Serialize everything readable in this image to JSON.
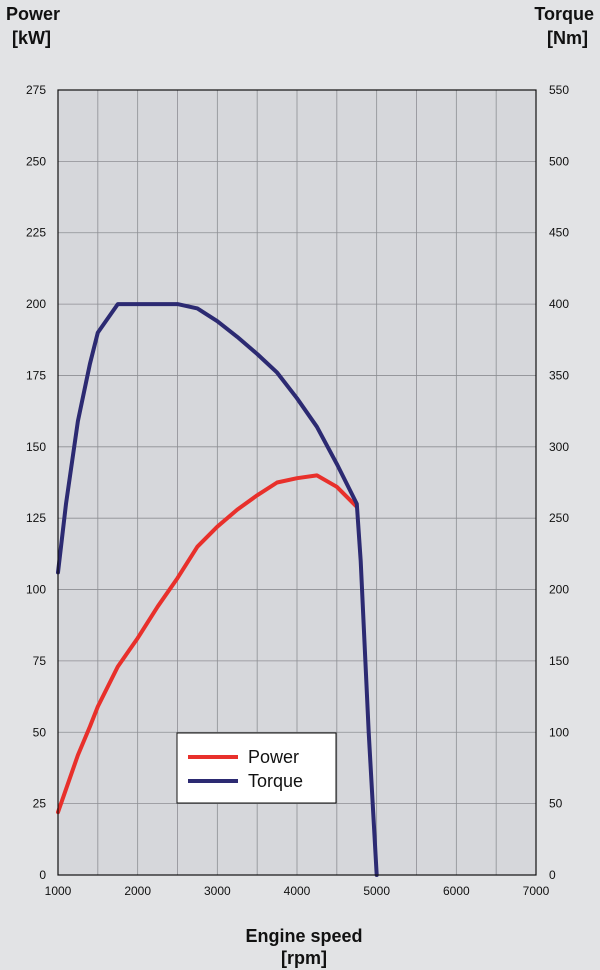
{
  "chart_data": {
    "type": "line",
    "left_axis": {
      "title_line1": "Power",
      "title_line2": "[kW]",
      "ticks": [
        0,
        25,
        50,
        75,
        100,
        125,
        150,
        175,
        200,
        225,
        250,
        275
      ],
      "range": [
        0,
        275
      ]
    },
    "right_axis": {
      "title_line1": "Torque",
      "title_line2": "[Nm]",
      "ticks": [
        0,
        50,
        100,
        150,
        200,
        250,
        300,
        350,
        400,
        450,
        500,
        550
      ],
      "range": [
        0,
        550
      ]
    },
    "x_axis": {
      "title_line1": "Engine speed",
      "title_line2": "[rpm]",
      "ticks": [
        1000,
        2000,
        3000,
        4000,
        5000,
        6000,
        7000
      ],
      "range": [
        1000,
        7000
      ],
      "minor_step": 500
    },
    "grid": true,
    "legend_placement": "bottom-center",
    "series": [
      {
        "name": "Power",
        "axis": "left",
        "color": "#e8302b",
        "x": [
          1000,
          1250,
          1400,
          1500,
          1750,
          2000,
          2250,
          2500,
          2750,
          3000,
          3250,
          3500,
          3750,
          4000,
          4250,
          4500,
          4750
        ],
        "y": [
          22,
          42,
          52,
          59,
          73,
          83,
          94,
          104,
          115,
          122,
          128,
          133,
          137.5,
          139,
          140,
          136,
          129
        ]
      },
      {
        "name": "Torque",
        "axis": "right",
        "color": "#2c2a72",
        "x": [
          1000,
          1100,
          1250,
          1400,
          1500,
          1750,
          2000,
          2500,
          2750,
          3000,
          3250,
          3500,
          3750,
          4000,
          4250,
          4500,
          4750,
          4800,
          4900,
          5000
        ],
        "y": [
          212,
          260,
          318,
          358,
          380,
          400,
          400,
          400,
          397,
          388,
          377,
          365,
          352,
          334,
          314,
          288,
          260,
          220,
          100,
          0
        ]
      }
    ]
  }
}
